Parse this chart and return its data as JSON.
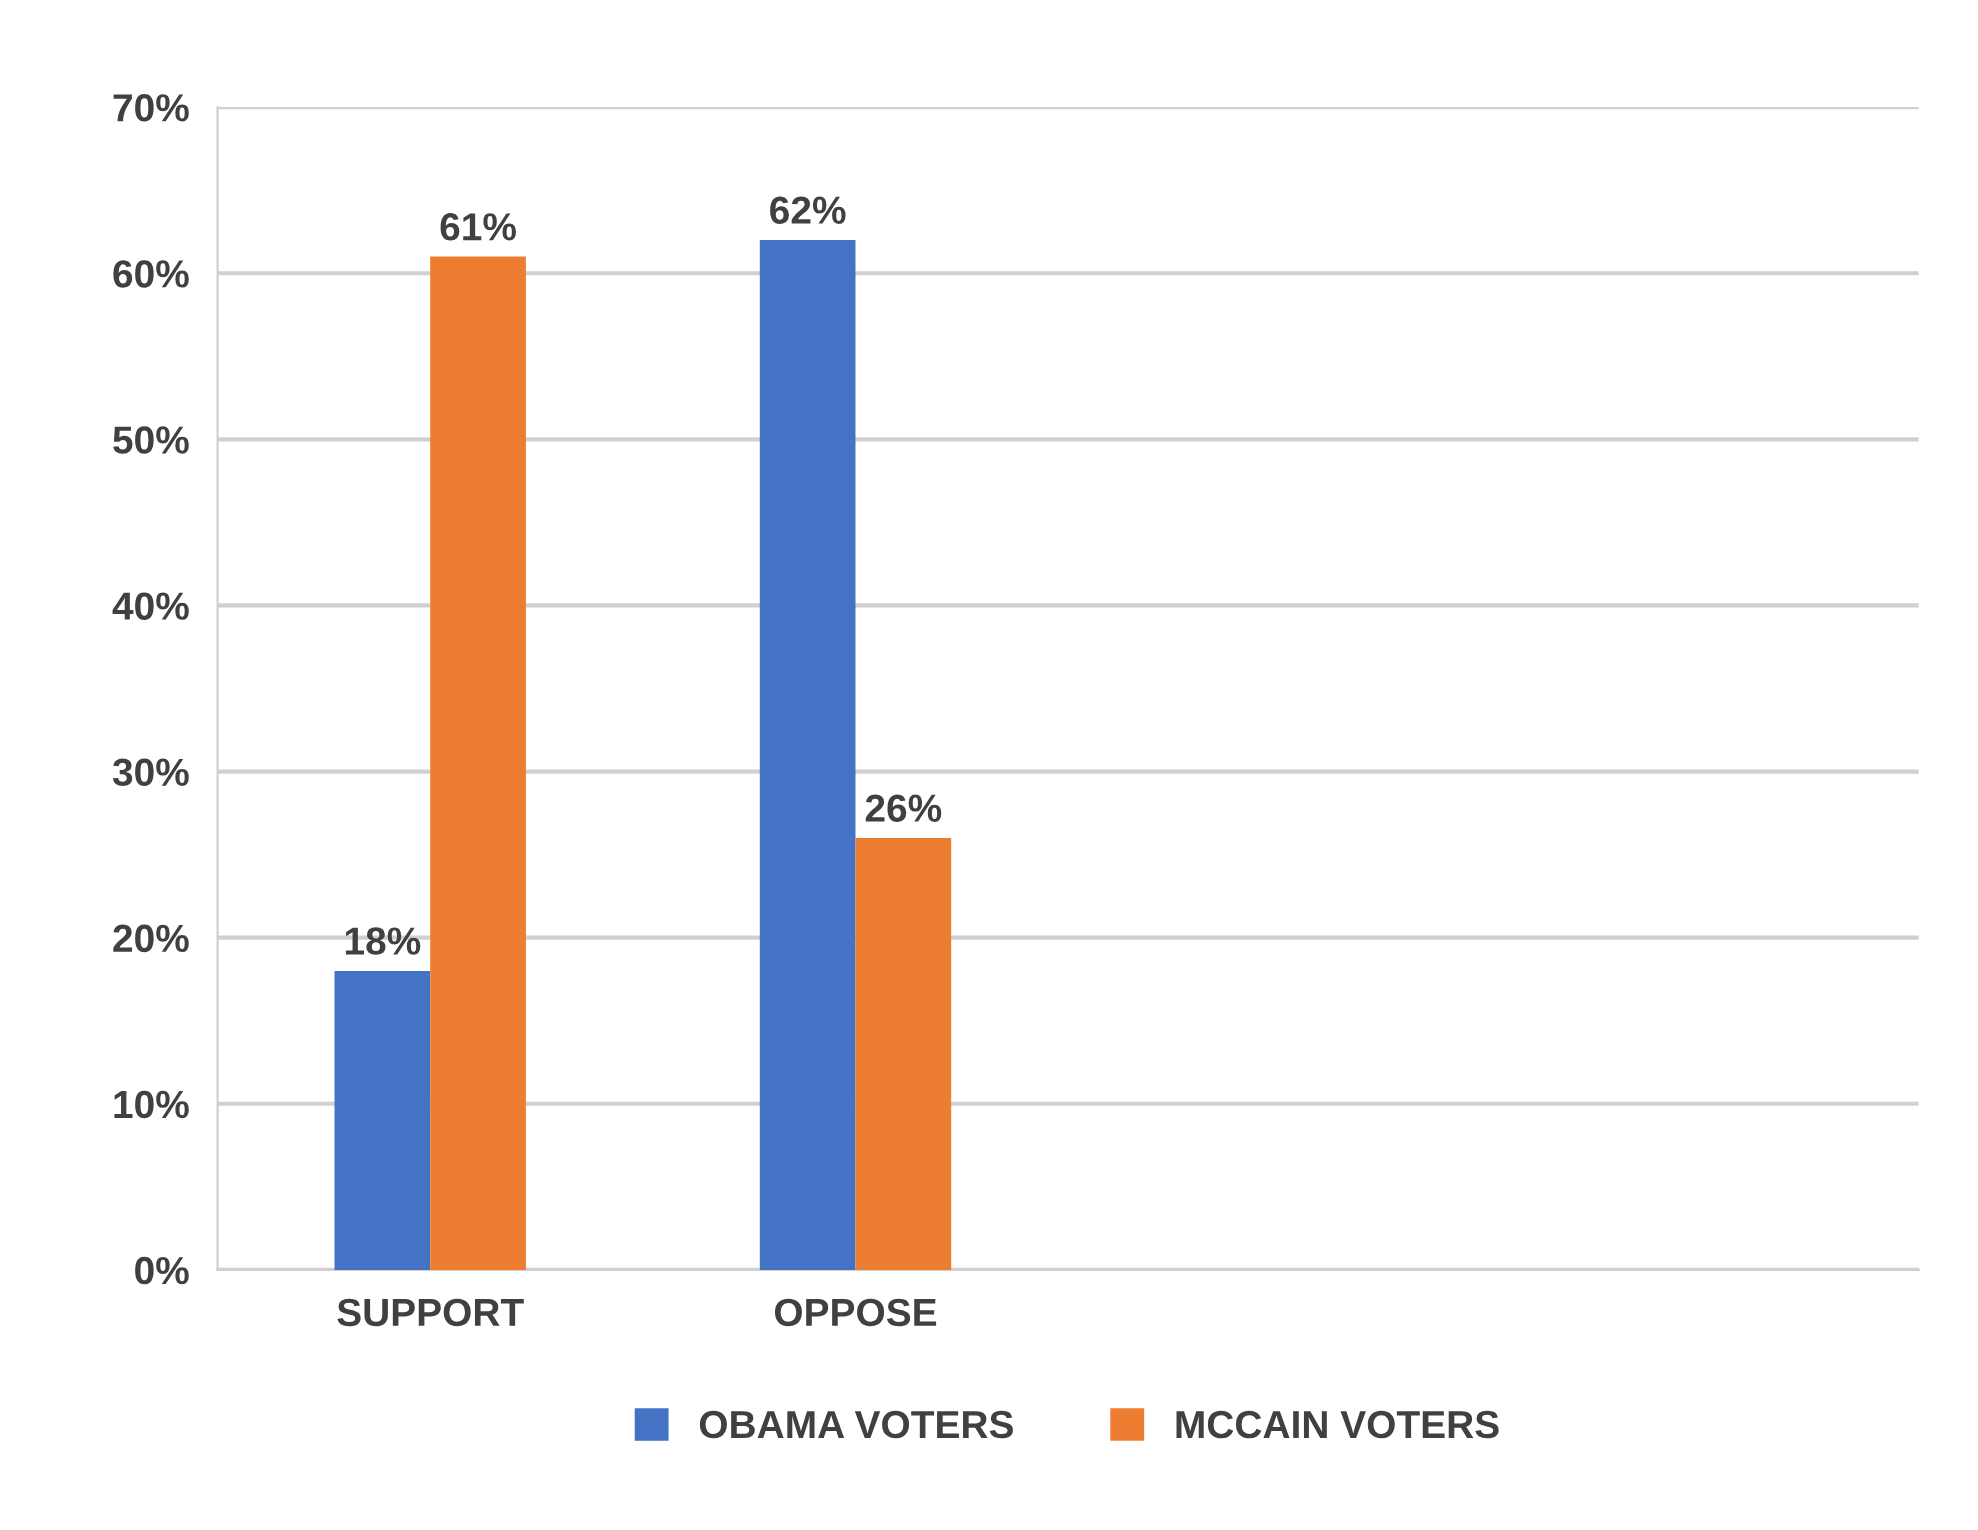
{
  "chart_data": {
    "type": "bar",
    "categories": [
      "SUPPORT",
      "OPPOSE",
      null,
      null
    ],
    "series": [
      {
        "name": "OBAMA VOTERS",
        "color": "#4472c4",
        "values": [
          18,
          62,
          null,
          null
        ],
        "value_labels": [
          "18%",
          "62%",
          null,
          null
        ]
      },
      {
        "name": "MCCAIN VOTERS",
        "color": "#ed7d31",
        "values": [
          61,
          26,
          null,
          null
        ],
        "value_labels": [
          "61%",
          "26%",
          null,
          null
        ]
      }
    ],
    "ylim": [
      0,
      70
    ],
    "yticks": [
      {
        "value": 0,
        "label": "0%"
      },
      {
        "value": 10,
        "label": "10%"
      },
      {
        "value": 20,
        "label": "20%"
      },
      {
        "value": 30,
        "label": "30%"
      },
      {
        "value": 40,
        "label": "40%"
      },
      {
        "value": 50,
        "label": "50%"
      },
      {
        "value": 60,
        "label": "60%"
      },
      {
        "value": 70,
        "label": "70%"
      }
    ],
    "grid": "y",
    "legend": "bottom"
  }
}
